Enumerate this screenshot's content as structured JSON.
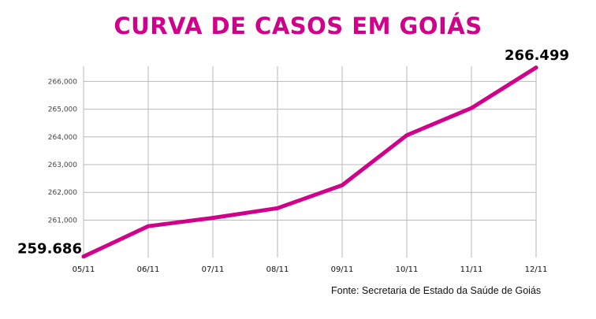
{
  "chart_data": {
    "type": "line",
    "title": "CURVA DE CASOS EM GOIÁS",
    "categories": [
      "05/11",
      "06/11",
      "07/11",
      "08/11",
      "09/11",
      "10/11",
      "11/11",
      "12/11"
    ],
    "series": [
      {
        "values": [
          259686,
          260780,
          261080,
          261430,
          262260,
          264060,
          265040,
          266499
        ]
      }
    ],
    "ylim": [
      259650,
      266550
    ],
    "yticks": [
      261000,
      262000,
      263000,
      264000,
      265000,
      266000
    ],
    "ytick_labels": [
      "261,000",
      "262,000",
      "263,000",
      "264,000",
      "265,000",
      "266,000"
    ],
    "grid": true,
    "start_label": "259.686",
    "end_label": "266.499",
    "source": "Fonte: Secretaria de Estado da Saúde de Goiás",
    "colors": {
      "line": "#d1008a",
      "title": "#d1008a",
      "grid": "#b9b9b9"
    }
  }
}
